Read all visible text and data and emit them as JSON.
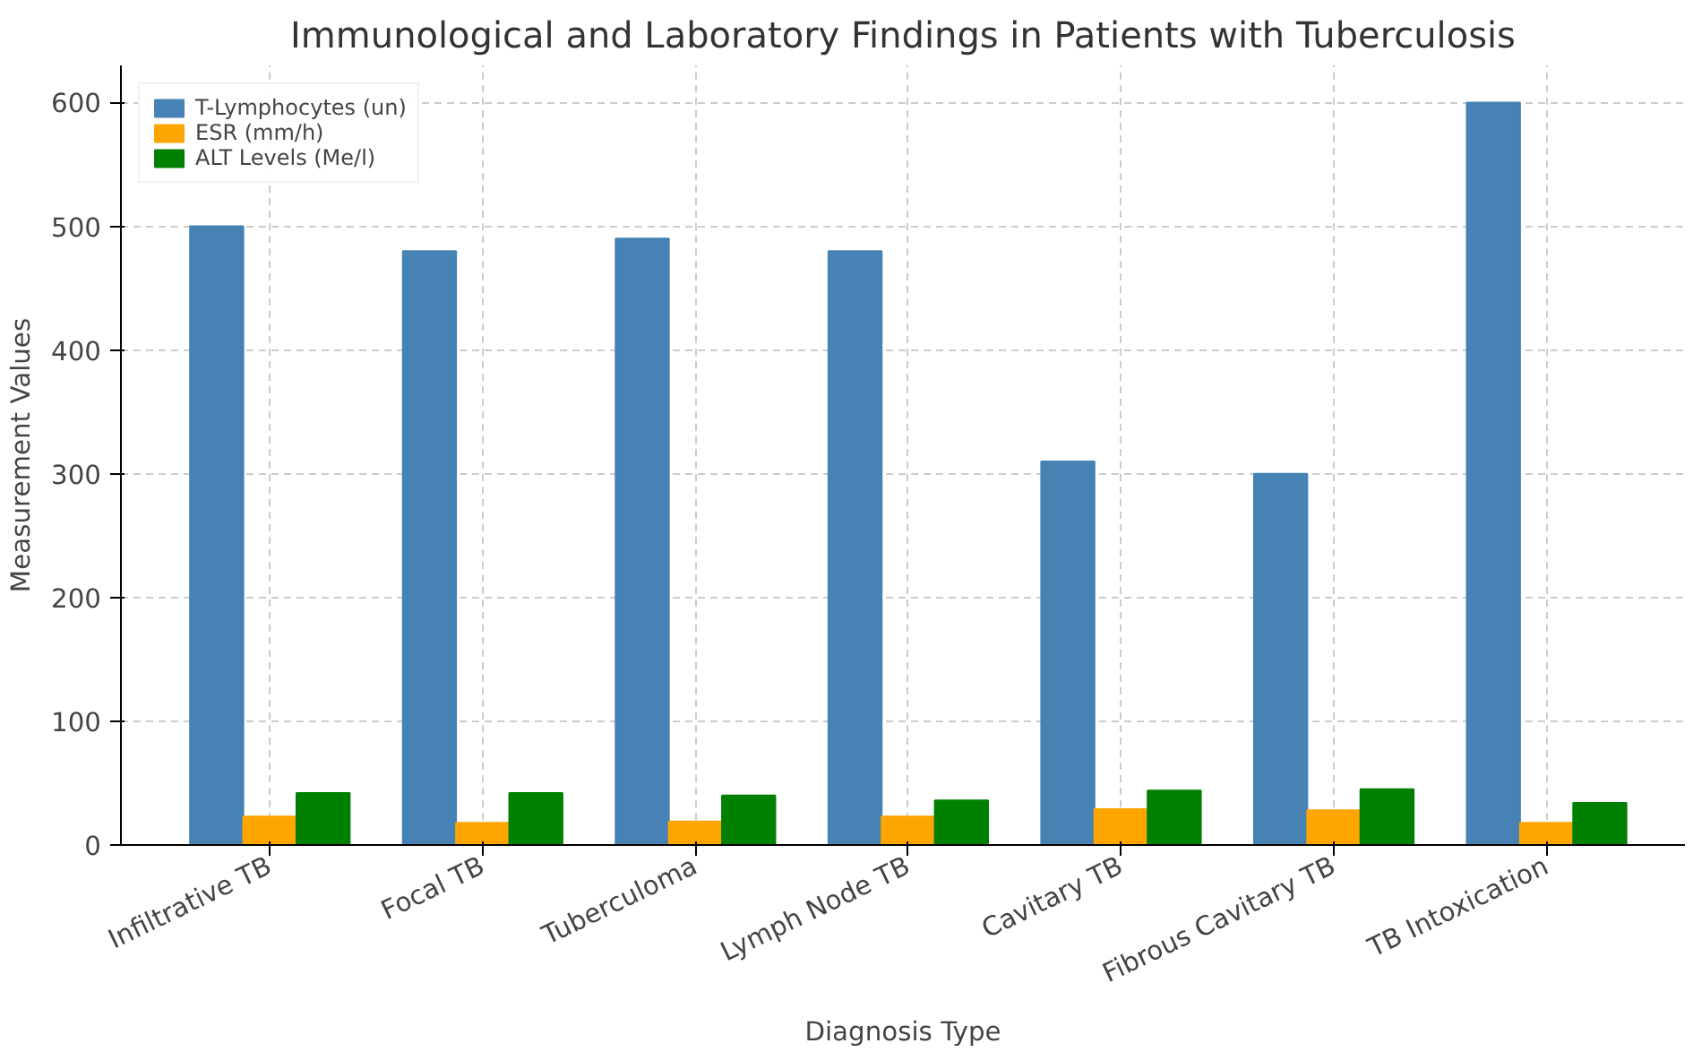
{
  "chart_data": {
    "type": "bar",
    "title": "Immunological and Laboratory Findings in Patients with Tuberculosis",
    "xlabel": "Diagnosis Type",
    "ylabel": "Measurement Values",
    "categories": [
      "Infiltrative TB",
      "Focal TB",
      "Tuberculoma",
      "Lymph Node TB",
      "Cavitary TB",
      "Fibrous Cavitary TB",
      "TB Intoxication"
    ],
    "series": [
      {
        "name": "T-Lymphocytes (un)",
        "color": "#4682b4",
        "values": [
          500,
          480,
          490,
          480,
          310,
          300,
          600
        ]
      },
      {
        "name": "ESR (mm/h)",
        "color": "#ffa500",
        "values": [
          23,
          18,
          19,
          23,
          29,
          28,
          18
        ]
      },
      {
        "name": "ALT Levels (Me/l)",
        "color": "#008000",
        "values": [
          42,
          42,
          40,
          36,
          44,
          45,
          34
        ]
      }
    ],
    "ylim": [
      0,
      630
    ],
    "yticks": [
      0,
      100,
      200,
      300,
      400,
      500,
      600
    ],
    "grid": true,
    "legend": "top left"
  }
}
